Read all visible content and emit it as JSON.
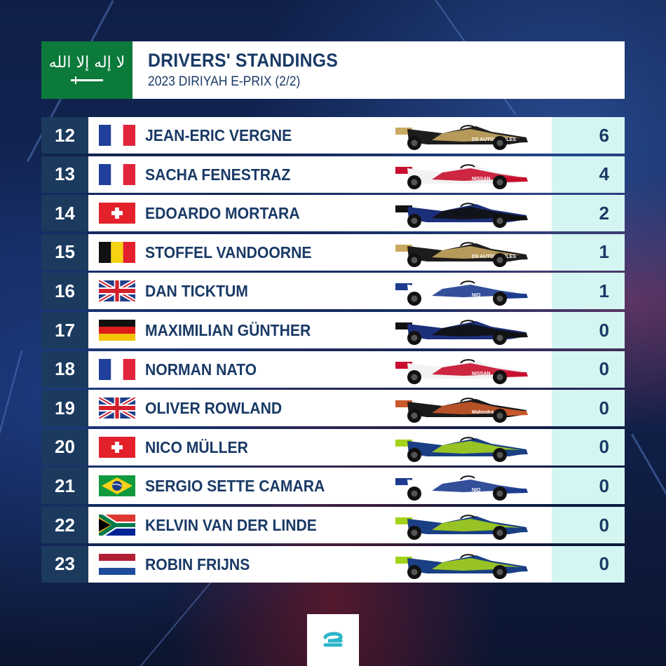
{
  "header": {
    "title": "DRIVERS' STANDINGS",
    "subtitle": "2023 DIRIYAH E-PRIX (2/2)",
    "country_flag": "saudi-arabia",
    "flag_script": "لا إله إلا الله"
  },
  "standings": [
    {
      "position": "12",
      "name": "JEAN-ERIC VERGNE",
      "flag": "france",
      "car": "ds-penske",
      "points": "6"
    },
    {
      "position": "13",
      "name": "SACHA FENESTRAZ",
      "flag": "france",
      "car": "nissan",
      "points": "4"
    },
    {
      "position": "14",
      "name": "EDOARDO MORTARA",
      "flag": "switzerland",
      "car": "maserati",
      "points": "2"
    },
    {
      "position": "15",
      "name": "STOFFEL VANDOORNE",
      "flag": "belgium",
      "car": "ds-penske",
      "points": "1"
    },
    {
      "position": "16",
      "name": "DAN TICKTUM",
      "flag": "united-kingdom",
      "car": "nio",
      "points": "1"
    },
    {
      "position": "17",
      "name": "MAXIMILIAN GÜNTHER",
      "flag": "germany",
      "car": "maserati",
      "points": "0"
    },
    {
      "position": "18",
      "name": "NORMAN NATO",
      "flag": "france",
      "car": "nissan",
      "points": "0"
    },
    {
      "position": "19",
      "name": "OLIVER ROWLAND",
      "flag": "united-kingdom",
      "car": "mahindra",
      "points": "0"
    },
    {
      "position": "20",
      "name": "NICO MÜLLER",
      "flag": "switzerland",
      "car": "abt",
      "points": "0"
    },
    {
      "position": "21",
      "name": "SERGIO SETTE CAMARA",
      "flag": "brazil",
      "car": "nio",
      "points": "0"
    },
    {
      "position": "22",
      "name": "KELVIN VAN DER LINDE",
      "flag": "south-africa",
      "car": "abt",
      "points": "0"
    },
    {
      "position": "23",
      "name": "ROBIN FRIJNS",
      "flag": "netherlands",
      "car": "abt",
      "points": "0"
    }
  ],
  "footer": {
    "logo": "formula-e-logo"
  },
  "colors": {
    "navy": "#1b3a5e",
    "text": "#1a3a66",
    "points_bg": "#d4f5f1",
    "saudi_green": "#0b7a3b",
    "logo_teal": "#2bb5c9"
  }
}
